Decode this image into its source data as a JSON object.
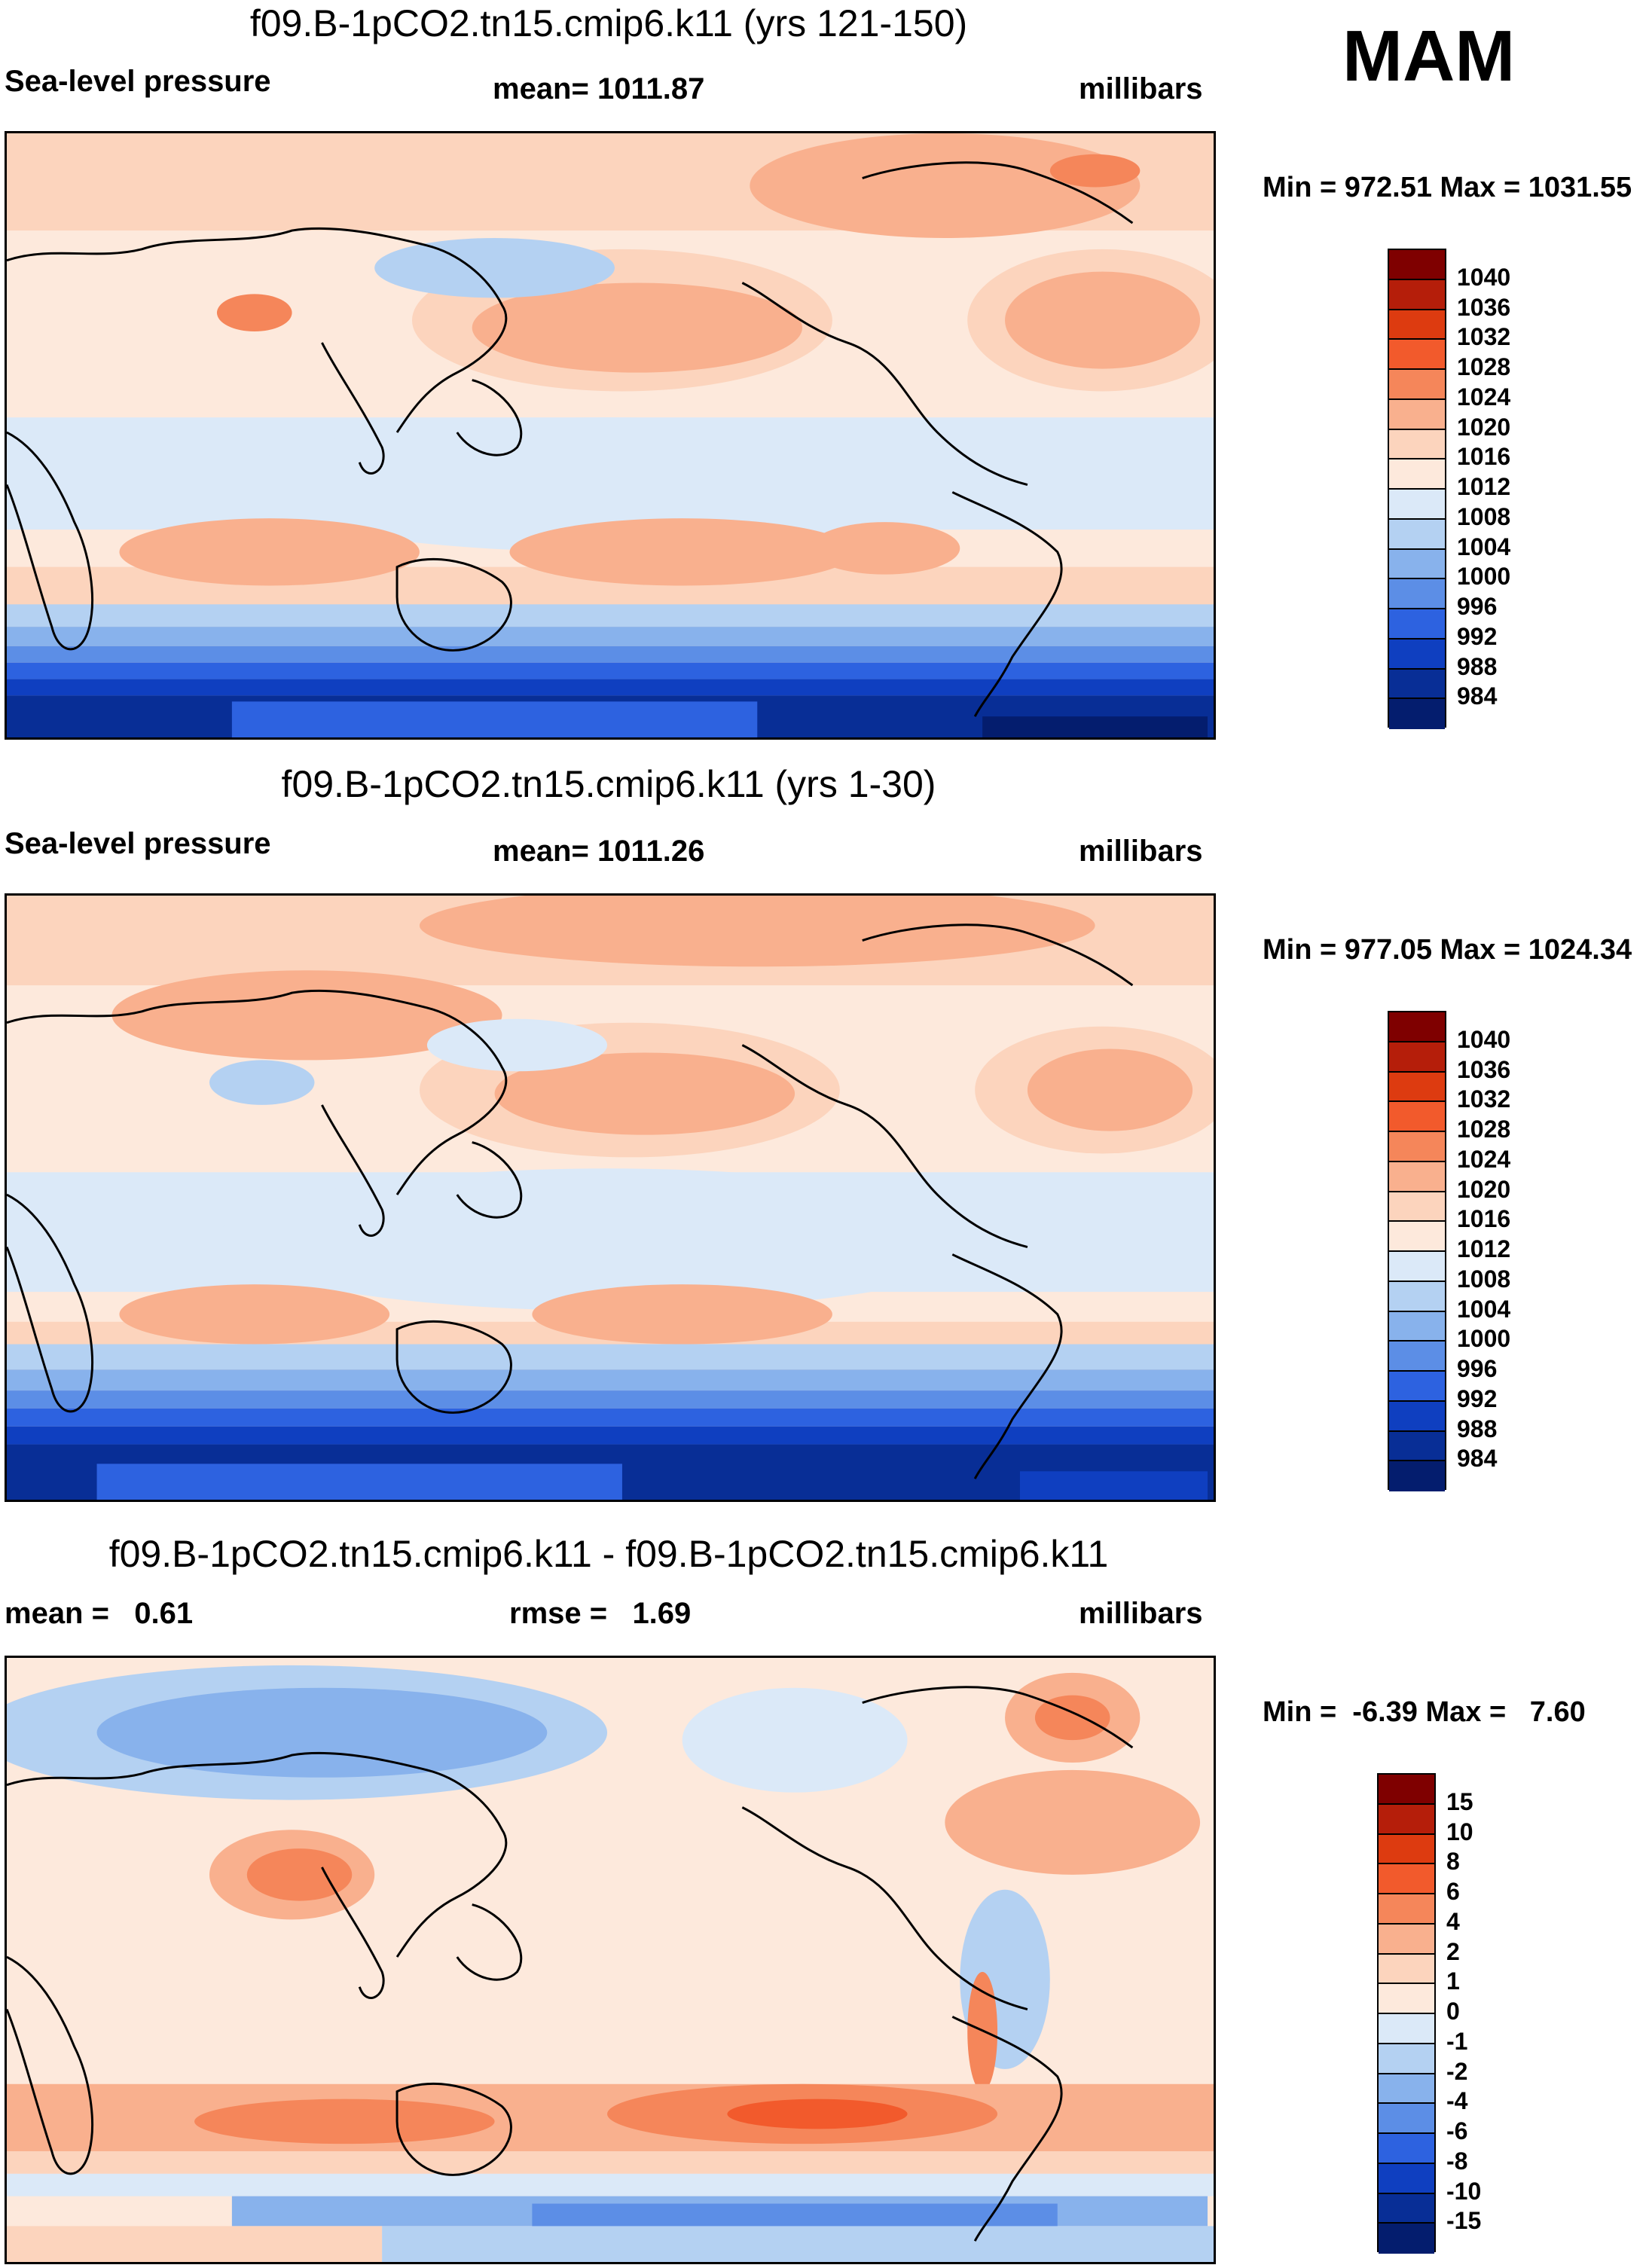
{
  "season": "MAM",
  "panels": [
    {
      "id": "p1",
      "title": "f09.B-1pCO2.tn15.cmip6.k11 (yrs 121-150)",
      "left_label": "Sea-level pressure",
      "center_label": "mean= 1011.87",
      "units": "millibars",
      "minmax": "Min = 972.51 Max = 1031.55",
      "colorbar": {
        "levels": [
          "1040",
          "1036",
          "1032",
          "1028",
          "1024",
          "1020",
          "1016",
          "1012",
          "1008",
          "1004",
          "1000",
          "996",
          "992",
          "988",
          "984"
        ],
        "colors": [
          "#7f0000",
          "#b51e0a",
          "#dd3b10",
          "#f25a2c",
          "#f5865a",
          "#f9b08e",
          "#fcd4bd",
          "#fde9dc",
          "#dbe9f8",
          "#b4d1f2",
          "#88b2ec",
          "#5c8ee6",
          "#2d62e0",
          "#0f3fc0",
          "#082e96",
          "#041d6e"
        ]
      }
    },
    {
      "id": "p2",
      "title": "f09.B-1pCO2.tn15.cmip6.k11 (yrs 1-30)",
      "left_label": "Sea-level pressure",
      "center_label": "mean= 1011.26",
      "units": "millibars",
      "minmax": "Min = 977.05 Max = 1024.34",
      "colorbar": {
        "levels": [
          "1040",
          "1036",
          "1032",
          "1028",
          "1024",
          "1020",
          "1016",
          "1012",
          "1008",
          "1004",
          "1000",
          "996",
          "992",
          "988",
          "984"
        ],
        "colors": [
          "#7f0000",
          "#b51e0a",
          "#dd3b10",
          "#f25a2c",
          "#f5865a",
          "#f9b08e",
          "#fcd4bd",
          "#fde9dc",
          "#dbe9f8",
          "#b4d1f2",
          "#88b2ec",
          "#5c8ee6",
          "#2d62e0",
          "#0f3fc0",
          "#082e96",
          "#041d6e"
        ]
      }
    },
    {
      "id": "p3",
      "title": "f09.B-1pCO2.tn15.cmip6.k11 - f09.B-1pCO2.tn15.cmip6.k11",
      "left_label": "mean =   0.61",
      "center_label": "rmse =   1.69",
      "units": "millibars",
      "minmax": "Min =  -6.39 Max =   7.60",
      "colorbar": {
        "levels": [
          "15",
          "10",
          "8",
          "6",
          "4",
          "2",
          "1",
          "0",
          "-1",
          "-2",
          "-4",
          "-6",
          "-8",
          "-10",
          "-15"
        ],
        "colors": [
          "#7f0000",
          "#b51e0a",
          "#dd3b10",
          "#f25a2c",
          "#f5865a",
          "#f9b08e",
          "#fcd4bd",
          "#fde9dc",
          "#dbe9f8",
          "#b4d1f2",
          "#88b2ec",
          "#5c8ee6",
          "#2d62e0",
          "#0f3fc0",
          "#082e96",
          "#041d6e"
        ]
      }
    }
  ]
}
